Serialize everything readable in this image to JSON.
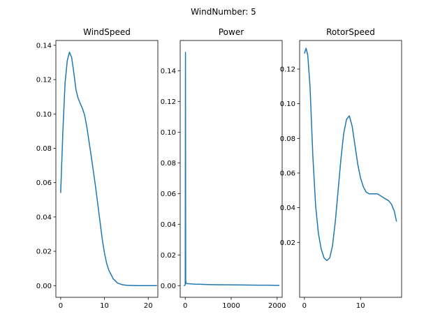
{
  "figure": {
    "suptitle": "WindNumber: 5"
  },
  "chart_data": [
    {
      "type": "line",
      "title": "WindSpeed",
      "xlabel": "",
      "ylabel": "",
      "xlim": [
        -1.1,
        22.2
      ],
      "ylim": [
        -0.0068,
        0.1428
      ],
      "xticks": [
        0,
        10,
        20
      ],
      "xtick_labels": [
        "0",
        "10",
        "20"
      ],
      "yticks": [
        0,
        0.02,
        0.04,
        0.06,
        0.08,
        0.1,
        0.12,
        0.14
      ],
      "ytick_labels": [
        "0.00",
        "0.02",
        "0.04",
        "0.06",
        "0.08",
        "0.10",
        "0.12",
        "0.14"
      ],
      "series": [
        {
          "color": "#1f77b4",
          "x": [
            0,
            0.5,
            1.0,
            1.5,
            2.0,
            2.5,
            3.0,
            3.5,
            4.0,
            4.5,
            5.0,
            5.5,
            6.0,
            7.0,
            8.0,
            9.0,
            9.5,
            10.0,
            10.5,
            11.0,
            12.0,
            13.0,
            14.0,
            15.0,
            16.0,
            18.0,
            20.0,
            22.0
          ],
          "y": [
            0.054,
            0.09,
            0.118,
            0.131,
            0.136,
            0.133,
            0.124,
            0.114,
            0.109,
            0.106,
            0.103,
            0.099,
            0.092,
            0.075,
            0.057,
            0.037,
            0.027,
            0.019,
            0.013,
            0.009,
            0.004,
            0.0015,
            0.0006,
            0.0002,
            0.0001,
            0.0,
            0.0,
            0.0
          ]
        }
      ]
    },
    {
      "type": "line",
      "title": "Power",
      "xlabel": "",
      "ylabel": "",
      "xlim": [
        -110,
        2110
      ],
      "ylim": [
        -0.0076,
        0.1597
      ],
      "xticks": [
        0,
        1000,
        2000
      ],
      "xtick_labels": [
        "0",
        "1000",
        "2000"
      ],
      "yticks": [
        0,
        0.02,
        0.04,
        0.06,
        0.08,
        0.1,
        0.12,
        0.14
      ],
      "ytick_labels": [
        "0.00",
        "0.02",
        "0.04",
        "0.06",
        "0.08",
        "0.10",
        "0.12",
        "0.14"
      ],
      "series": [
        {
          "color": "#1f77b4",
          "x": [
            -30,
            -10,
            0,
            5,
            10,
            15,
            20,
            25,
            30,
            100,
            200,
            300,
            500,
            700,
            1000,
            1300,
            1600,
            1800,
            2000,
            2050
          ],
          "y": [
            0.0,
            0.0002,
            0.0005,
            0.152,
            0.0035,
            0.0025,
            0.0015,
            0.0015,
            0.0013,
            0.0012,
            0.001,
            0.0009,
            0.0007,
            0.0006,
            0.0005,
            0.0004,
            0.0003,
            0.0003,
            0.0002,
            0.0002
          ]
        }
      ]
    },
    {
      "type": "line",
      "title": "RotorSpeed",
      "xlabel": "",
      "ylabel": "",
      "xlim": [
        -0.85,
        17.3
      ],
      "ylim": [
        -0.0117,
        0.1365
      ],
      "xticks": [
        0,
        10
      ],
      "xtick_labels": [
        "0",
        "10"
      ],
      "yticks": [
        0.02,
        0.04,
        0.06,
        0.08,
        0.1,
        0.12
      ],
      "ytick_labels": [
        "0.02",
        "0.04",
        "0.06",
        "0.08",
        "0.10",
        "0.12"
      ],
      "series": [
        {
          "color": "#1f77b4",
          "x": [
            0,
            0.3,
            0.6,
            1.0,
            1.5,
            2.0,
            2.5,
            3.0,
            3.5,
            4.0,
            4.5,
            5.0,
            5.5,
            6.0,
            6.5,
            7.0,
            7.5,
            8.0,
            8.5,
            9.0,
            9.5,
            10.0,
            10.5,
            11.0,
            11.5,
            12.0,
            12.5,
            13.0,
            13.5,
            14.0,
            14.5,
            15.0,
            15.5,
            16.0,
            16.4
          ],
          "y": [
            0.129,
            0.132,
            0.128,
            0.11,
            0.07,
            0.041,
            0.025,
            0.016,
            0.011,
            0.0095,
            0.011,
            0.018,
            0.032,
            0.05,
            0.068,
            0.083,
            0.091,
            0.093,
            0.087,
            0.076,
            0.065,
            0.057,
            0.052,
            0.049,
            0.048,
            0.048,
            0.048,
            0.048,
            0.047,
            0.046,
            0.045,
            0.044,
            0.042,
            0.038,
            0.032
          ]
        }
      ]
    }
  ]
}
